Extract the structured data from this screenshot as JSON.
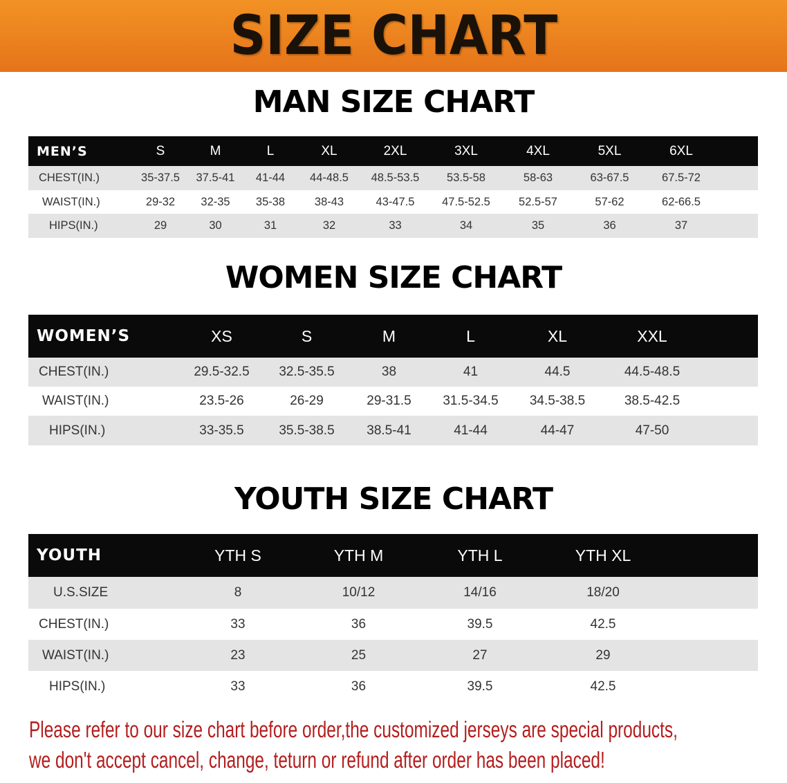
{
  "title": "SIZE CHART",
  "colors": {
    "banner": "#ee8420",
    "header_row": "#0a0a0a",
    "note": "#b41e1e"
  },
  "sections": [
    {
      "title": "MAN SIZE CHART",
      "corner": "MEN’S",
      "sizes": [
        "S",
        "M",
        "L",
        "XL",
        "2XL",
        "3XL",
        "4XL",
        "5XL",
        "6XL"
      ],
      "rows": [
        {
          "label": "CHEST(IN.)",
          "values": [
            "35-37.5",
            "37.5-41",
            "41-44",
            "44-48.5",
            "48.5-53.5",
            "53.5-58",
            "58-63",
            "63-67.5",
            "67.5-72"
          ]
        },
        {
          "label": "WAIST(IN.)",
          "values": [
            "29-32",
            "32-35",
            "35-38",
            "38-43",
            "43-47.5",
            "47.5-52.5",
            "52.5-57",
            "57-62",
            "62-66.5"
          ]
        },
        {
          "label": "HIPS(IN.)",
          "values": [
            "29",
            "30",
            "31",
            "32",
            "33",
            "34",
            "35",
            "36",
            "37"
          ]
        }
      ]
    },
    {
      "title": "WOMEN SIZE CHART",
      "corner": "WOMEN’S",
      "sizes": [
        "XS",
        "S",
        "M",
        "L",
        "XL",
        "XXL"
      ],
      "rows": [
        {
          "label": "CHEST(IN.)",
          "values": [
            "29.5-32.5",
            "32.5-35.5",
            "38",
            "41",
            "44.5",
            "44.5-48.5"
          ]
        },
        {
          "label": "WAIST(IN.)",
          "values": [
            "23.5-26",
            "26-29",
            "29-31.5",
            "31.5-34.5",
            "34.5-38.5",
            "38.5-42.5"
          ]
        },
        {
          "label": "HIPS(IN.)",
          "values": [
            "33-35.5",
            "35.5-38.5",
            "38.5-41",
            "41-44",
            "44-47",
            "47-50"
          ]
        }
      ]
    },
    {
      "title": "YOUTH SIZE CHART",
      "corner": "YOUTH",
      "sizes": [
        "YTH S",
        "YTH M",
        "YTH L",
        "YTH XL"
      ],
      "rows": [
        {
          "label": "U.S.SIZE",
          "values": [
            "8",
            "10/12",
            "14/16",
            "18/20"
          ]
        },
        {
          "label": "CHEST(IN.)",
          "values": [
            "33",
            "36",
            "39.5",
            "42.5"
          ]
        },
        {
          "label": "WAIST(IN.)",
          "values": [
            "23",
            "25",
            "27",
            "29"
          ]
        },
        {
          "label": "HIPS(IN.)",
          "values": [
            "33",
            "36",
            "39.5",
            "42.5"
          ]
        }
      ]
    }
  ],
  "notice": [
    "Please refer to our size chart before order,the customized jerseys are special products,",
    "we don't accept cancel, change, teturn or refund after order has been placed!"
  ]
}
